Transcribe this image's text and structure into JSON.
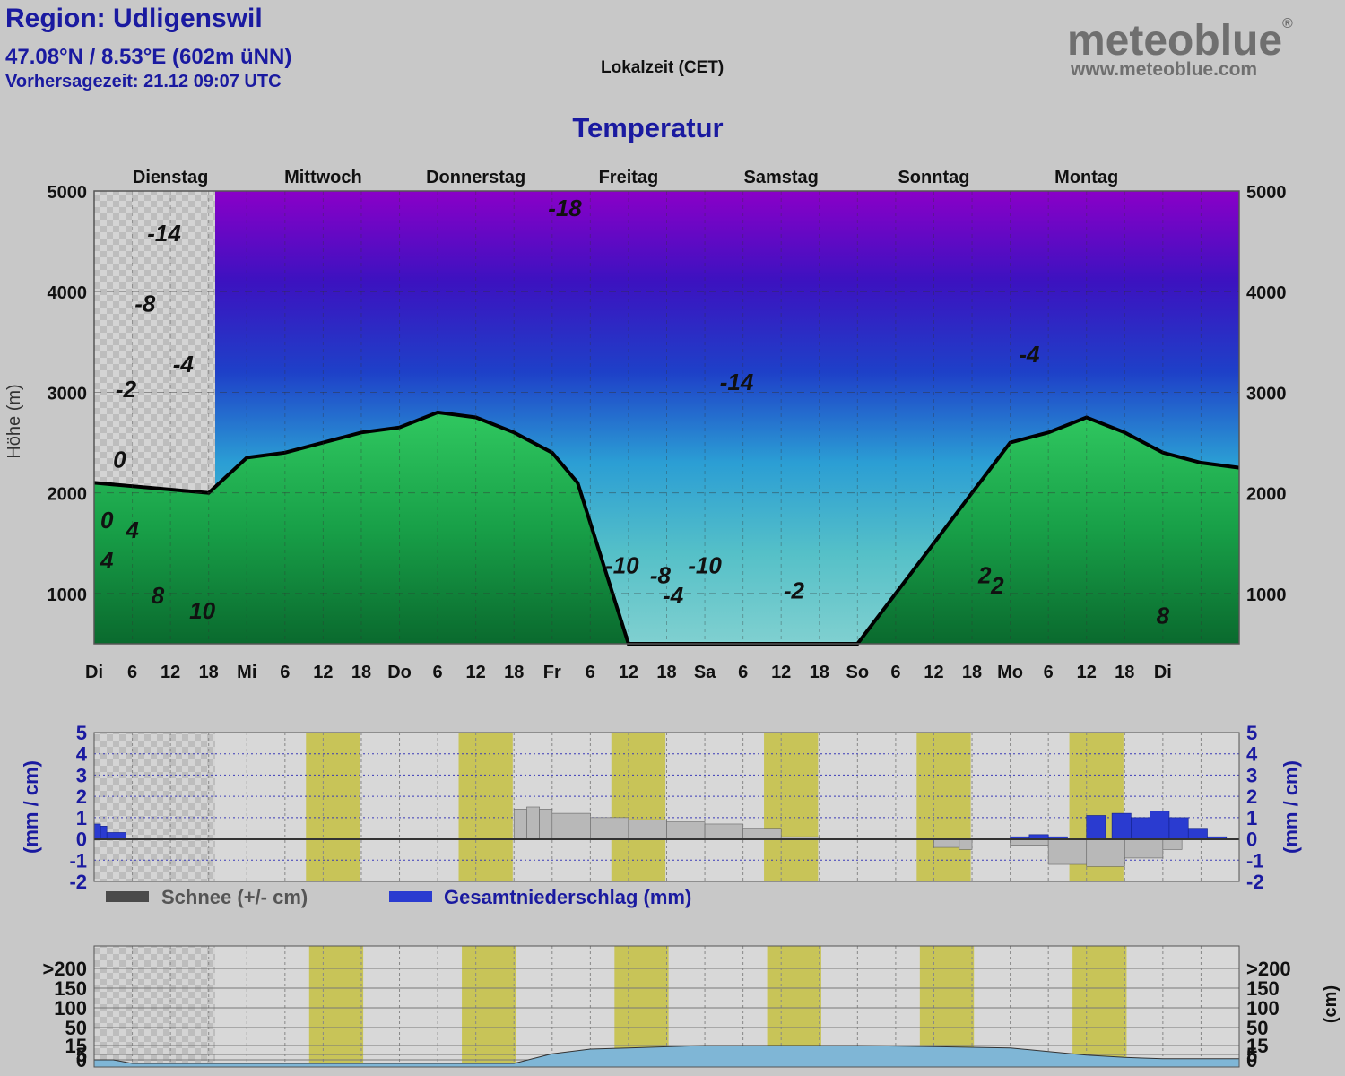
{
  "header": {
    "region": "Region: Udligenswil",
    "coords": "47.08°N / 8.53°E (602m üNN)",
    "forecast_time": "Vorhersagezeit: 21.12 09:07 UTC",
    "timezone": "Lokalzeit (CET)",
    "logo_text": "meteoblue",
    "logo_mark": "®",
    "logo_url": "www.meteoblue.com"
  },
  "chart_data": [
    {
      "type": "heatmap",
      "title": "Temperatur",
      "ylabel": "Höhe (m)",
      "ylim": [
        500,
        5000
      ],
      "yticks": [
        "1000",
        "2000",
        "3000",
        "4000",
        "5000"
      ],
      "days": [
        "Dienstag",
        "Mittwoch",
        "Donnerstag",
        "Freitag",
        "Samstag",
        "Sonntag",
        "Montag"
      ],
      "xticks": [
        "Di",
        "6",
        "12",
        "18",
        "Mi",
        "6",
        "12",
        "18",
        "Do",
        "6",
        "12",
        "18",
        "Fr",
        "6",
        "12",
        "18",
        "Sa",
        "6",
        "12",
        "18",
        "So",
        "6",
        "12",
        "18",
        "Mo",
        "6",
        "12",
        "18",
        "Di"
      ],
      "contour_labels": [
        "-18",
        "-14",
        "-14",
        "-10",
        "-10",
        "-8",
        "-8",
        "-4",
        "-4",
        "-4",
        "-2",
        "-2",
        "0",
        "0",
        "2",
        "2",
        "4",
        "4",
        "8",
        "8",
        "10"
      ],
      "freezing_level": {
        "x_hours": [
          0,
          18,
          24,
          30,
          36,
          42,
          48,
          54,
          60,
          66,
          72,
          76,
          84,
          96,
          108,
          120,
          126,
          132,
          138,
          144,
          150,
          156,
          162,
          168,
          174,
          180
        ],
        "height_m": [
          2100,
          2000,
          2350,
          2400,
          2500,
          2600,
          2650,
          2800,
          2750,
          2600,
          2400,
          2100,
          500,
          500,
          500,
          500,
          1000,
          1500,
          2000,
          2500,
          2600,
          2750,
          2600,
          2400,
          2300,
          2250
        ]
      }
    },
    {
      "type": "bar",
      "ylabel": "(mm / cm)",
      "ylim": [
        -2,
        5
      ],
      "yticks": [
        "-2",
        "-1",
        "0",
        "1",
        "2",
        "3",
        "4",
        "5"
      ],
      "legend": [
        "Schnee (+/- cm)",
        "Gesamtniederschlag (mm)"
      ],
      "series": [
        {
          "name": "Gesamtniederschlag (mm)",
          "x_hours": [
            0,
            1,
            2,
            144,
            147,
            150,
            156,
            160,
            163,
            166,
            169,
            172,
            175
          ],
          "values": [
            0.7,
            0.6,
            0.3,
            0.1,
            0.2,
            0.1,
            1.1,
            1.2,
            1.0,
            1.3,
            1.0,
            0.5,
            0.1
          ]
        },
        {
          "name": "Schnee (+/- cm)",
          "x_hours": [
            66,
            68,
            70,
            72,
            78,
            84,
            90,
            96,
            102,
            108,
            114,
            120,
            132,
            136,
            138,
            144,
            150,
            156,
            162,
            168
          ],
          "values": [
            1.4,
            1.5,
            1.4,
            1.2,
            1.0,
            0.9,
            0.8,
            0.7,
            0.5,
            0.1,
            0,
            0,
            -0.4,
            -0.5,
            0,
            -0.3,
            -1.2,
            -1.3,
            -0.9,
            -0.5
          ]
        }
      ]
    },
    {
      "type": "area",
      "ylabel": "(cm)",
      "yticks": [
        "0",
        "5",
        "15",
        "50",
        "100",
        "150",
        ">200"
      ],
      "series": [
        {
          "name": "",
          "x_hours": [
            0,
            3,
            6,
            66,
            72,
            78,
            84,
            96,
            108,
            120,
            132,
            144,
            150,
            156,
            162,
            168,
            180
          ],
          "values": [
            3,
            3,
            0,
            0,
            8,
            12,
            13,
            15,
            15,
            15,
            14,
            13,
            10,
            7,
            5,
            4,
            4
          ]
        }
      ]
    }
  ]
}
